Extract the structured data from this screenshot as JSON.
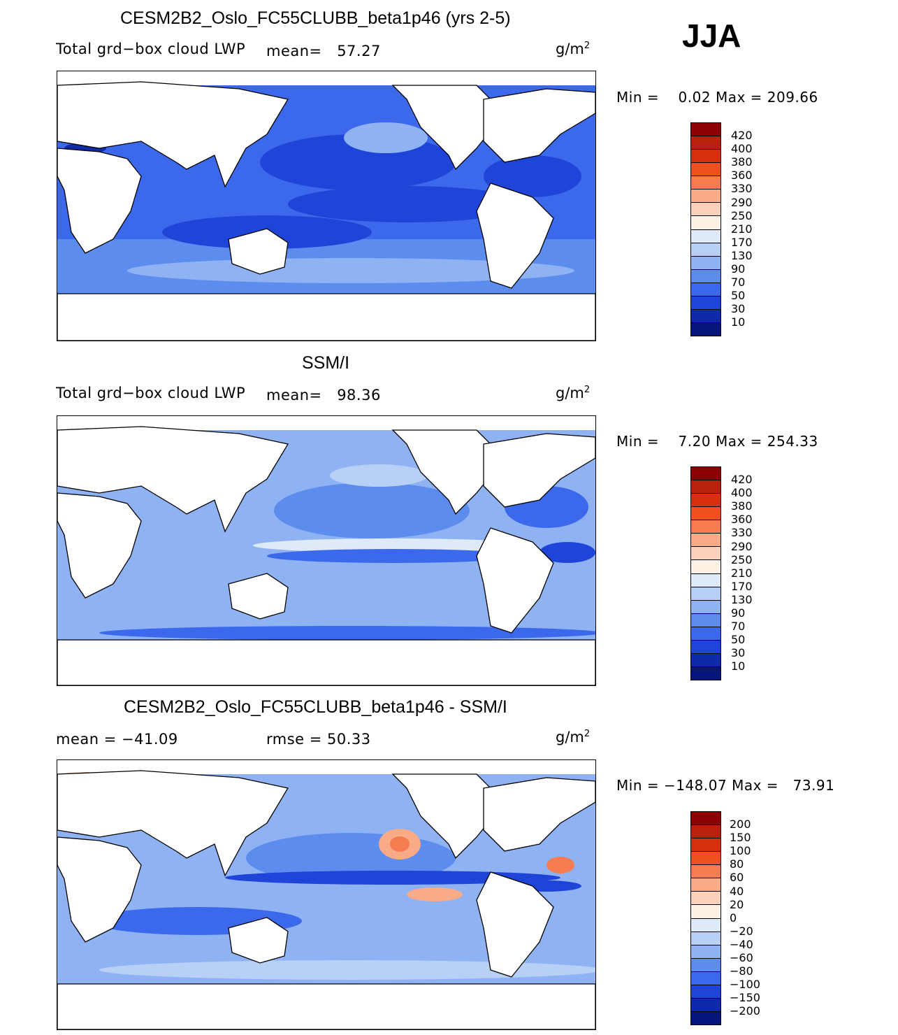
{
  "season": "JJA",
  "panels": [
    {
      "title": "CESM2B2_Oslo_FC55CLUBB_beta1p46 (yrs 2-5)",
      "variable": "Total grd−box cloud LWP",
      "mean_label": "mean=",
      "mean_value": "57.27",
      "units_base": "g/m",
      "units_exp": "2",
      "min_label": "Min =",
      "min_value": "0.02",
      "max_label": "Max =",
      "max_value": "209.66",
      "colorbar_labels": [
        "420",
        "400",
        "380",
        "360",
        "330",
        "290",
        "250",
        "210",
        "170",
        "130",
        "90",
        "70",
        "50",
        "30",
        "10"
      ]
    },
    {
      "title": "SSM/I",
      "variable": "Total grd−box cloud LWP",
      "mean_label": "mean=",
      "mean_value": "98.36",
      "units_base": "g/m",
      "units_exp": "2",
      "min_label": "Min =",
      "min_value": "7.20",
      "max_label": "Max =",
      "max_value": "254.33",
      "colorbar_labels": [
        "420",
        "400",
        "380",
        "360",
        "330",
        "290",
        "250",
        "210",
        "170",
        "130",
        "90",
        "70",
        "50",
        "30",
        "10"
      ]
    },
    {
      "title": "CESM2B2_Oslo_FC55CLUBB_beta1p46 - SSM/I",
      "mean_text": "mean = −41.09",
      "rmse_text": "rmse =  50.33",
      "units_base": "g/m",
      "units_exp": "2",
      "min_label": "Min =",
      "min_value": "−148.07",
      "max_label": "Max =",
      "max_value": "73.91",
      "colorbar_labels": [
        "200",
        "150",
        "100",
        "80",
        "60",
        "40",
        "20",
        "0",
        "−20",
        "−40",
        "−60",
        "−80",
        "−100",
        "−150",
        "−200"
      ]
    }
  ],
  "colors": {
    "field_scale": [
      "#8b0000",
      "#b8220d",
      "#d7300f",
      "#f0501f",
      "#f57c50",
      "#f9aa86",
      "#fbd1b9",
      "#fdf0e4",
      "#dfeaf9",
      "#b8d0f6",
      "#8fb2f3",
      "#5d8cef",
      "#3c69ec",
      "#1f45d8",
      "#0e2aa6",
      "#08157a"
    ],
    "land": "#ffffff",
    "coast": "#000000"
  }
}
